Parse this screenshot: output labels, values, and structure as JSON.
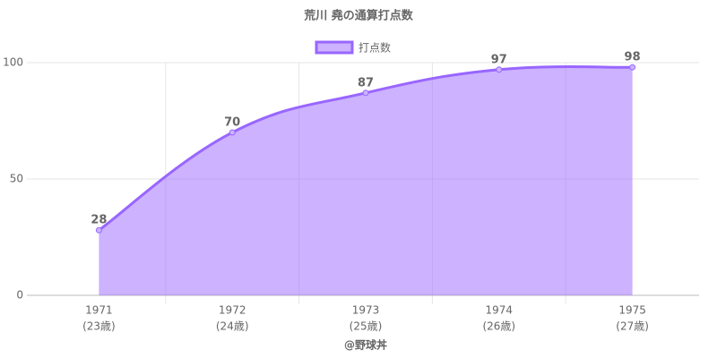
{
  "chart_data": {
    "type": "area",
    "title": "荒川 堯の通算打点数",
    "x_label": "@野球丼",
    "categories": [
      [
        "1971",
        "(23歳)"
      ],
      [
        "1972",
        "(24歳)"
      ],
      [
        "1973",
        "(25歳)"
      ],
      [
        "1974",
        "(26歳)"
      ],
      [
        "1975",
        "(27歳)"
      ]
    ],
    "series": [
      {
        "name": "打点数",
        "color": "#9966ff",
        "values": [
          28,
          70,
          87,
          97,
          98
        ]
      }
    ],
    "ylim": [
      0,
      100
    ],
    "yticks": [
      0,
      50,
      100
    ],
    "grid": true
  }
}
